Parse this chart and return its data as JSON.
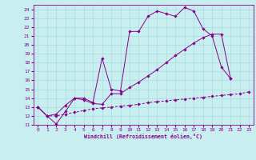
{
  "xlabel": "Windchill (Refroidissement éolien,°C)",
  "background_color": "#c8eef0",
  "grid_color": "#a8dce0",
  "line_color": "#880088",
  "xlim": [
    -0.5,
    23.5
  ],
  "ylim": [
    11,
    24.5
  ],
  "xticks": [
    0,
    1,
    2,
    3,
    4,
    5,
    6,
    7,
    8,
    9,
    10,
    11,
    12,
    13,
    14,
    15,
    16,
    17,
    18,
    19,
    20,
    21,
    22,
    23
  ],
  "yticks": [
    11,
    12,
    13,
    14,
    15,
    16,
    17,
    18,
    19,
    20,
    21,
    22,
    23,
    24
  ],
  "series1_x": [
    0,
    1,
    2,
    3,
    4,
    5,
    6,
    7,
    8,
    9,
    10,
    11,
    12,
    13,
    14,
    15,
    16,
    17,
    18,
    19,
    20,
    21
  ],
  "series1_y": [
    13,
    12,
    11.1,
    12.5,
    14.0,
    14.0,
    13.5,
    18.5,
    15.0,
    14.8,
    21.5,
    21.5,
    23.2,
    23.8,
    23.5,
    23.2,
    24.2,
    23.8,
    21.8,
    21.0,
    17.5,
    16.2
  ],
  "series2_x": [
    0,
    1,
    2,
    3,
    4,
    5,
    6,
    7,
    8,
    9,
    10,
    11,
    12,
    13,
    14,
    15,
    16,
    17,
    18,
    19,
    20,
    21
  ],
  "series2_y": [
    13,
    12,
    12.2,
    13.2,
    14.0,
    13.8,
    13.4,
    13.3,
    14.5,
    14.5,
    15.2,
    15.8,
    16.5,
    17.2,
    18.0,
    18.8,
    19.5,
    20.2,
    20.8,
    21.2,
    21.2,
    16.2
  ],
  "series3_x": [
    0,
    1,
    2,
    3,
    4,
    5,
    6,
    7,
    8,
    9,
    10,
    11,
    12,
    13,
    14,
    15,
    16,
    17,
    18,
    19,
    20,
    21,
    22,
    23
  ],
  "series3_y": [
    13.0,
    12.0,
    12.0,
    12.2,
    12.4,
    12.6,
    12.8,
    12.9,
    13.0,
    13.1,
    13.2,
    13.3,
    13.5,
    13.6,
    13.7,
    13.8,
    13.9,
    14.0,
    14.1,
    14.2,
    14.3,
    14.4,
    14.5,
    14.7
  ]
}
